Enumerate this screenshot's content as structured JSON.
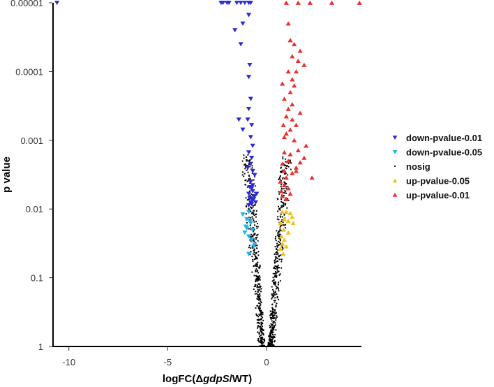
{
  "chart_data": {
    "type": "scatter",
    "title": "",
    "xlabel": {
      "pre": "logFC(Δ",
      "italic": "gdpS",
      "post": "/WT)"
    },
    "ylabel": "p value",
    "xlim": [
      -10.8,
      4.8
    ],
    "ylim_log10": [
      0,
      5
    ],
    "y_scale": "reversed-log10",
    "x_ticks": [
      {
        "value": -10,
        "label": "-10"
      },
      {
        "value": -5,
        "label": "-5"
      },
      {
        "value": 0,
        "label": "0"
      }
    ],
    "y_ticks": [
      {
        "value": 1,
        "label": "1"
      },
      {
        "value": 0.1,
        "label": "0.1"
      },
      {
        "value": 0.01,
        "label": "0.01"
      },
      {
        "value": 0.001,
        "label": "0.001"
      },
      {
        "value": 0.0001,
        "label": "0.0001"
      },
      {
        "value": 1e-05,
        "label": "0.00001"
      }
    ],
    "grid": false,
    "legend_position": "right",
    "series": [
      {
        "name": "down-pvalue-0.01",
        "marker": "triangle-down",
        "color": "#2b2bd6",
        "points": [
          [
            -10.6,
            1e-05
          ],
          [
            -2.3,
            1e-05
          ],
          [
            -2.2,
            1e-05
          ],
          [
            -2.0,
            1e-05
          ],
          [
            -1.9,
            1e-05
          ],
          [
            -1.5,
            1e-05
          ],
          [
            -1.3,
            1e-05
          ],
          [
            -1.1,
            1e-05
          ],
          [
            -0.9,
            1e-05
          ],
          [
            -0.8,
            1e-05
          ],
          [
            -1.6,
            2.5e-05
          ],
          [
            -1.3,
            4e-05
          ],
          [
            -1.2,
            2e-05
          ],
          [
            -0.9,
            1.5e-05
          ],
          [
            -0.85,
            8e-05
          ],
          [
            -0.9,
            0.00012
          ],
          [
            -0.8,
            0.00025
          ],
          [
            -0.9,
            0.00035
          ],
          [
            -0.75,
            0.0006
          ],
          [
            -0.95,
            0.0005
          ],
          [
            -1.4,
            0.0005
          ],
          [
            -1.2,
            0.0007
          ],
          [
            -0.8,
            0.0009
          ],
          [
            -0.7,
            0.0012
          ],
          [
            -0.9,
            0.0015
          ],
          [
            -0.75,
            0.0018
          ],
          [
            -0.8,
            0.0022
          ],
          [
            -0.7,
            0.0028
          ],
          [
            -0.6,
            0.0032
          ],
          [
            -0.95,
            0.0025
          ],
          [
            -0.8,
            0.004
          ],
          [
            -0.7,
            0.0045
          ],
          [
            -0.75,
            0.005
          ],
          [
            -0.9,
            0.006
          ],
          [
            -0.6,
            0.0065
          ],
          [
            -0.85,
            0.007
          ],
          [
            -0.7,
            0.0075
          ],
          [
            -0.5,
            0.006
          ],
          [
            -0.8,
            0.008
          ],
          [
            -0.75,
            0.0085
          ],
          [
            -0.55,
            0.008
          ],
          [
            -0.9,
            0.0088
          ],
          [
            -0.65,
            0.0072
          ],
          [
            -0.7,
            0.0055
          ],
          [
            -0.85,
            0.0048
          ]
        ]
      },
      {
        "name": "down-pvalue-0.05",
        "marker": "triangle-down",
        "color": "#1eb4e8",
        "points": [
          [
            -1.2,
            0.012
          ],
          [
            -0.9,
            0.011
          ],
          [
            -1.0,
            0.014
          ],
          [
            -0.8,
            0.016
          ],
          [
            -1.0,
            0.019
          ],
          [
            -0.7,
            0.02
          ],
          [
            -1.1,
            0.022
          ],
          [
            -0.9,
            0.025
          ],
          [
            -0.75,
            0.028
          ],
          [
            -0.6,
            0.033
          ],
          [
            -0.9,
            0.045
          ],
          [
            -0.65,
            0.035
          ],
          [
            -1.05,
            0.018
          ],
          [
            -0.85,
            0.015
          ]
        ]
      },
      {
        "name": "nosig",
        "marker": "dot",
        "color": "#000000",
        "points": []
      },
      {
        "name": "up-pvalue-0.05",
        "marker": "triangle-up",
        "color": "#f2c21b",
        "points": [
          [
            0.8,
            0.011
          ],
          [
            1.0,
            0.011
          ],
          [
            1.2,
            0.0115
          ],
          [
            1.3,
            0.013
          ],
          [
            0.9,
            0.014
          ],
          [
            1.1,
            0.015
          ],
          [
            0.7,
            0.016
          ],
          [
            1.35,
            0.016
          ],
          [
            0.85,
            0.02
          ],
          [
            1.1,
            0.022
          ],
          [
            0.75,
            0.025
          ],
          [
            0.9,
            0.028
          ],
          [
            0.8,
            0.032
          ],
          [
            1.0,
            0.035
          ],
          [
            0.7,
            0.038
          ],
          [
            0.85,
            0.045
          ]
        ]
      },
      {
        "name": "up-pvalue-0.01",
        "marker": "triangle-up",
        "color": "#e8302f",
        "points": [
          [
            1.0,
            1e-05
          ],
          [
            1.6,
            1e-05
          ],
          [
            2.2,
            1e-05
          ],
          [
            3.3,
            1e-05
          ],
          [
            4.7,
            1e-05
          ],
          [
            1.1,
            2e-05
          ],
          [
            1.2,
            3.5e-05
          ],
          [
            1.4,
            4e-05
          ],
          [
            1.7,
            5e-05
          ],
          [
            1.3,
            6e-05
          ],
          [
            1.6,
            7e-05
          ],
          [
            1.9,
            8e-05
          ],
          [
            1.5,
            0.0001
          ],
          [
            1.1,
            0.0001
          ],
          [
            1.3,
            0.00013
          ],
          [
            0.8,
            0.00015
          ],
          [
            1.4,
            0.00016
          ],
          [
            1.2,
            0.0002
          ],
          [
            0.9,
            0.00025
          ],
          [
            1.3,
            0.0003
          ],
          [
            1.1,
            0.00035
          ],
          [
            1.7,
            0.0004
          ],
          [
            1.0,
            0.00045
          ],
          [
            1.3,
            0.0005
          ],
          [
            0.85,
            0.0006
          ],
          [
            1.5,
            0.0006
          ],
          [
            1.2,
            0.0007
          ],
          [
            1.0,
            0.0008
          ],
          [
            0.9,
            0.0009
          ],
          [
            1.4,
            0.001
          ],
          [
            2.0,
            0.0012
          ],
          [
            1.6,
            0.0014
          ],
          [
            0.9,
            0.0015
          ],
          [
            1.2,
            0.0016
          ],
          [
            1.9,
            0.0018
          ],
          [
            1.1,
            0.002
          ],
          [
            0.8,
            0.0022
          ],
          [
            1.5,
            0.0025
          ],
          [
            0.9,
            0.0028
          ],
          [
            1.3,
            0.003
          ],
          [
            2.3,
            0.0035
          ],
          [
            1.0,
            0.0035
          ],
          [
            0.7,
            0.004
          ],
          [
            0.9,
            0.0045
          ],
          [
            1.1,
            0.005
          ],
          [
            0.75,
            0.0055
          ],
          [
            1.2,
            0.006
          ],
          [
            0.8,
            0.0065
          ],
          [
            1.0,
            0.0072
          ],
          [
            1.5,
            0.0028
          ],
          [
            1.7,
            0.0021
          ]
        ]
      }
    ]
  }
}
